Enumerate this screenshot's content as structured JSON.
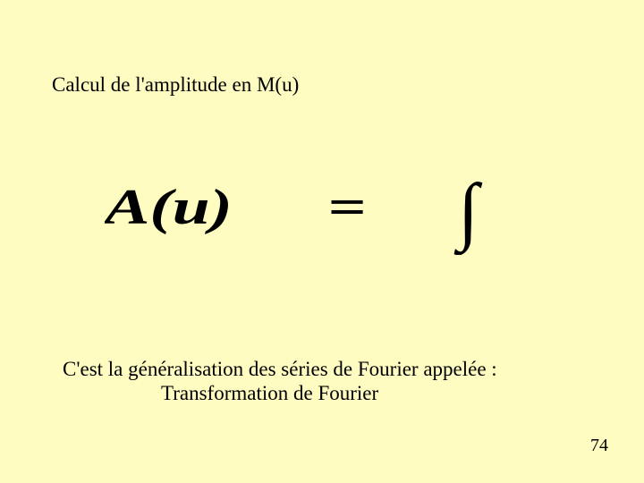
{
  "title": "Calcul de l'amplitude en M(u)",
  "formula": {
    "left_text": "A(u)",
    "mid_text": "=",
    "right_text": "∫",
    "font_family": "Times New Roman",
    "style": "italic-bold",
    "color": "#000000",
    "left_fontsize": 56,
    "eq_fontsize": 56,
    "int_fontsize": 84,
    "x_scale": 1.35
  },
  "desc_line1": "C'est la généralisation des séries de Fourier appelée :",
  "desc_line2": "Transformation de Fourier",
  "page_number": "74",
  "background_color": "#fefcc0",
  "text_color": "#000000"
}
